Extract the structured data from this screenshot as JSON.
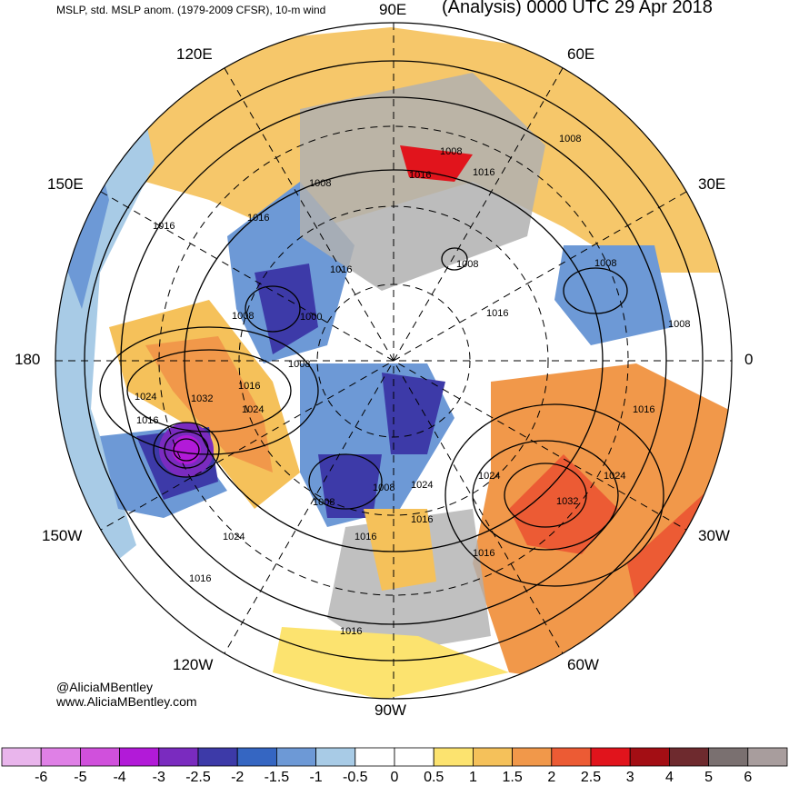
{
  "header": {
    "left": "MSLP, std. MSLP anom. (1979-2009 CFSR), 10-m wind",
    "right": "(Analysis) 0000 UTC 29 Apr 2018"
  },
  "credits": {
    "handle": "@AliciaMBentley",
    "site": "www.AliciaMBentley.com"
  },
  "longitude_labels": {
    "e90": "90E",
    "e60": "60E",
    "e30": "30E",
    "zero": "0",
    "w30": "30W",
    "w60": "60W",
    "w90": "90W",
    "w120": "120W",
    "w150": "150W",
    "l180": "180",
    "e150": "150E",
    "e120": "120E"
  },
  "isobar_labels": [
    "1008",
    "1016",
    "1008",
    "1016",
    "1016",
    "1008",
    "1016",
    "1008",
    "1016",
    "1008",
    "1008",
    "1000",
    "1008",
    "1008",
    "1016",
    "1016",
    "1024",
    "1032",
    "1016",
    "1024",
    "1016",
    "1024",
    "1032",
    "1024",
    "1008",
    "1008",
    "1024",
    "1016",
    "1016",
    "1016",
    "1024",
    "1016",
    "1016"
  ],
  "colorbar": {
    "ticks": [
      "-6",
      "-5",
      "-4",
      "-3",
      "-2.5",
      "-2",
      "-1.5",
      "-1",
      "-0.5",
      "0",
      "0.5",
      "1",
      "1.5",
      "2",
      "2.5",
      "3",
      "4",
      "5",
      "6"
    ],
    "colors": [
      "#e9b5ec",
      "#df80e6",
      "#d050dc",
      "#b21ad8",
      "#7a2bbf",
      "#3d3aa8",
      "#3566c2",
      "#6d99d6",
      "#a8cbe6",
      "#ffffff",
      "#ffffff",
      "#fce36f",
      "#f5c15a",
      "#f1984a",
      "#ec5b34",
      "#e1141c",
      "#a30e14",
      "#6e2a2e",
      "#7a7070",
      "#a89d9d"
    ]
  }
}
